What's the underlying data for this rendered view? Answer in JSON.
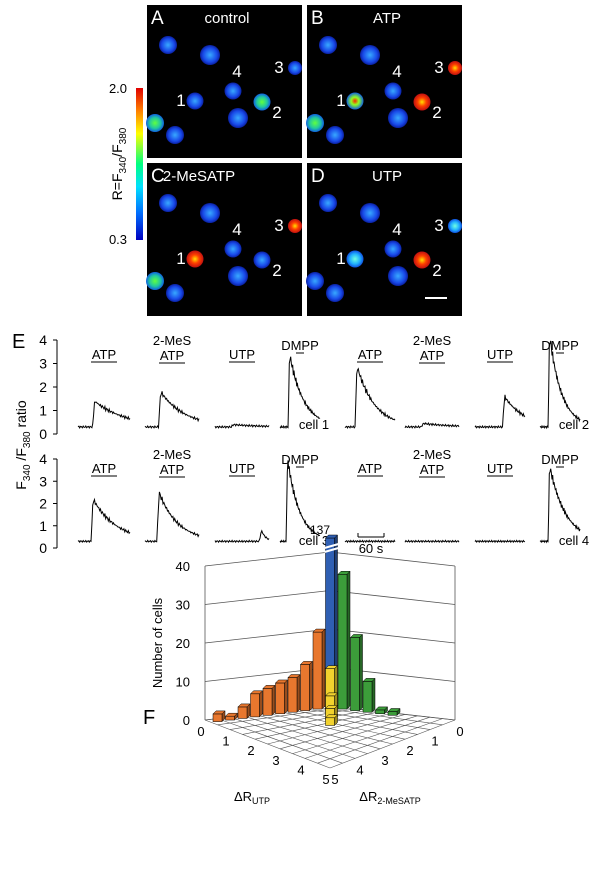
{
  "panels": [
    {
      "letter": "A",
      "label": "control"
    },
    {
      "letter": "B",
      "label": "ATP"
    },
    {
      "letter": "C",
      "label": "2-MeSATP"
    },
    {
      "letter": "D",
      "label": "UTP"
    }
  ],
  "cell_numbers": [
    "1",
    "2",
    "3",
    "4"
  ],
  "colorbar": {
    "max": "2.0",
    "min": "0.3",
    "label": [
      "R=F",
      "340",
      "/F",
      "380"
    ]
  },
  "traces": {
    "letter": "E",
    "y_label": [
      "F",
      "340",
      " /F",
      "380",
      " ratio"
    ],
    "y_ticks": [
      0,
      1,
      2,
      3,
      4
    ],
    "stimuli": [
      "ATP",
      "2-MeS",
      "ATP",
      "UTP",
      "DMPP"
    ],
    "cells": [
      "cell 1",
      "cell 2",
      "cell 3",
      "cell 4"
    ],
    "scale_bar": "60 s"
  },
  "histogram": {
    "letter": "F",
    "y_label": "Number of cells",
    "y_ticks": [
      0,
      10,
      20,
      30,
      40
    ],
    "x_label": [
      "ΔR",
      "UTP"
    ],
    "x2_label": [
      "ΔR",
      "2-MeSATP"
    ],
    "x_ticks": [
      0,
      1,
      2,
      3,
      4,
      5
    ],
    "x2_ticks": [
      0,
      1,
      2,
      3,
      4,
      5
    ],
    "bars": [
      {
        "color": "#2f5fb3",
        "values": [
          137
        ]
      },
      {
        "color": "#f2d22e",
        "values": [
          11,
          5,
          3,
          2
        ]
      },
      {
        "color": "#e8772e",
        "values": [
          20,
          12,
          9,
          8,
          7,
          6,
          3,
          1,
          2
        ]
      },
      {
        "color": "#3c9d3a",
        "values": [
          35,
          19,
          8,
          1,
          1
        ]
      }
    ]
  }
}
